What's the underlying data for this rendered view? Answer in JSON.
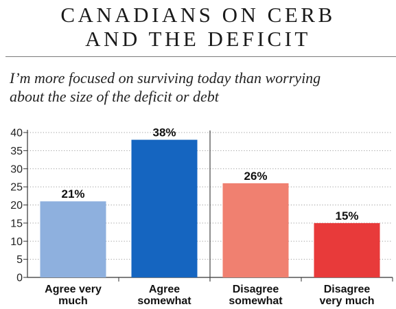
{
  "header": {
    "title_line1": "CANADIANS ON CERB",
    "title_line2": "AND THE DEFICIT"
  },
  "subtitle": "I’m more focused on surviving today than worrying\nabout the size of the deficit or debt",
  "chart_data": {
    "type": "bar",
    "categories": [
      [
        "Agree very",
        "much"
      ],
      [
        "Agree",
        "somewhat"
      ],
      [
        "Disagree",
        "somewhat"
      ],
      [
        "Disagree",
        "very much"
      ]
    ],
    "values": [
      21,
      38,
      26,
      15
    ],
    "data_labels": [
      "21%",
      "38%",
      "26%",
      "15%"
    ],
    "colors": [
      "#8eb0de",
      "#1565c0",
      "#f08070",
      "#e83a3a"
    ],
    "ylim": [
      0,
      40
    ],
    "yticks": [
      0,
      5,
      10,
      15,
      20,
      25,
      30,
      35,
      40
    ],
    "grid": true,
    "divider_between": [
      "Agree somewhat",
      "Disagree somewhat"
    ],
    "title": "CANADIANS ON CERB AND THE DEFICIT",
    "xlabel": "",
    "ylabel": ""
  }
}
